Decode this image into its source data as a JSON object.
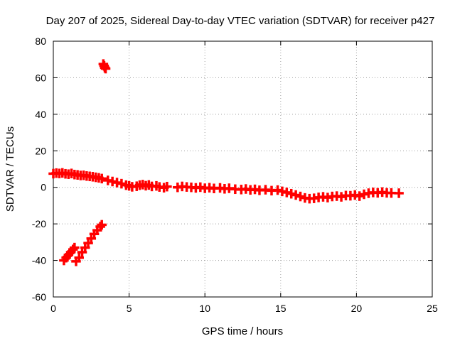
{
  "chart_data": {
    "type": "scatter",
    "title": "Day 207 of 2025, Sidereal Day-to-day VTEC variation (SDTVAR) for receiver p427",
    "xlabel": "GPS time / hours",
    "ylabel": "SDTVAR / TECUs",
    "xlim": [
      0,
      25
    ],
    "ylim": [
      -60,
      80
    ],
    "xticks": [
      "0",
      "5",
      "10",
      "15",
      "20",
      "25"
    ],
    "yticks": [
      "-60",
      "-40",
      "-20",
      "0",
      "20",
      "40",
      "60",
      "80"
    ],
    "grid": true,
    "marker": "plus",
    "series": [
      {
        "name": "main-trend",
        "color": "#ff0000",
        "points": [
          [
            0.0,
            7.5
          ],
          [
            0.2,
            7.8
          ],
          [
            0.4,
            7.6
          ],
          [
            0.6,
            7.9
          ],
          [
            0.8,
            7.4
          ],
          [
            1.0,
            7.2
          ],
          [
            1.2,
            7.6
          ],
          [
            1.4,
            7.0
          ],
          [
            1.6,
            6.8
          ],
          [
            1.8,
            6.5
          ],
          [
            2.0,
            6.6
          ],
          [
            2.2,
            6.2
          ],
          [
            2.4,
            6.0
          ],
          [
            2.6,
            5.8
          ],
          [
            2.8,
            5.5
          ],
          [
            3.0,
            5.2
          ],
          [
            3.2,
            4.8
          ],
          [
            3.6,
            3.8
          ],
          [
            3.9,
            3.2
          ],
          [
            4.2,
            2.6
          ],
          [
            4.5,
            2.0
          ],
          [
            4.8,
            1.2
          ],
          [
            5.0,
            0.8
          ],
          [
            5.2,
            0.3
          ],
          [
            5.5,
            0.6
          ],
          [
            5.7,
            1.2
          ],
          [
            5.9,
            1.5
          ],
          [
            6.1,
            0.9
          ],
          [
            6.3,
            1.3
          ],
          [
            6.5,
            0.5
          ],
          [
            6.8,
            0.8
          ],
          [
            7.0,
            0.2
          ],
          [
            7.3,
            -0.2
          ],
          [
            7.5,
            0.4
          ],
          [
            8.2,
            0.0
          ],
          [
            8.5,
            0.5
          ],
          [
            8.8,
            0.2
          ],
          [
            9.1,
            0.0
          ],
          [
            9.4,
            -0.3
          ],
          [
            9.7,
            0.1
          ],
          [
            10.0,
            -0.5
          ],
          [
            10.3,
            -0.2
          ],
          [
            10.6,
            -0.6
          ],
          [
            11.0,
            -0.3
          ],
          [
            11.3,
            -0.8
          ],
          [
            11.6,
            -0.5
          ],
          [
            12.0,
            -1.0
          ],
          [
            12.4,
            -1.2
          ],
          [
            12.7,
            -0.9
          ],
          [
            13.0,
            -1.4
          ],
          [
            13.3,
            -1.1
          ],
          [
            13.6,
            -1.6
          ],
          [
            14.0,
            -1.3
          ],
          [
            14.4,
            -1.8
          ],
          [
            14.8,
            -1.5
          ],
          [
            15.1,
            -2.2
          ],
          [
            15.4,
            -2.8
          ],
          [
            15.7,
            -3.5
          ],
          [
            16.0,
            -4.2
          ],
          [
            16.3,
            -5.0
          ],
          [
            16.6,
            -5.8
          ],
          [
            16.9,
            -6.2
          ],
          [
            17.2,
            -6.0
          ],
          [
            17.5,
            -5.5
          ],
          [
            17.8,
            -5.2
          ],
          [
            18.1,
            -5.6
          ],
          [
            18.4,
            -5.0
          ],
          [
            18.7,
            -4.8
          ],
          [
            19.0,
            -5.2
          ],
          [
            19.3,
            -4.5
          ],
          [
            19.6,
            -4.6
          ],
          [
            19.9,
            -4.2
          ],
          [
            20.2,
            -4.8
          ],
          [
            20.5,
            -3.8
          ],
          [
            20.8,
            -3.2
          ],
          [
            21.1,
            -2.8
          ],
          [
            21.4,
            -3.0
          ],
          [
            21.7,
            -2.6
          ],
          [
            22.0,
            -3.0
          ],
          [
            22.3,
            -3.1
          ],
          [
            22.8,
            -3.2
          ]
        ]
      },
      {
        "name": "outlier-upper",
        "color": "#ff0000",
        "points": [
          [
            3.3,
            67.5
          ],
          [
            3.35,
            66.5
          ],
          [
            3.4,
            65.5
          ],
          [
            3.45,
            65.0
          ]
        ]
      },
      {
        "name": "outlier-lower-left",
        "color": "#ff0000",
        "points": [
          [
            0.7,
            -40.0
          ],
          [
            0.85,
            -38.5
          ],
          [
            1.0,
            -37.0
          ],
          [
            1.15,
            -35.5
          ],
          [
            1.3,
            -34.0
          ],
          [
            1.4,
            -33.0
          ]
        ]
      },
      {
        "name": "outlier-lower-right",
        "color": "#ff0000",
        "points": [
          [
            1.5,
            -40.5
          ],
          [
            1.7,
            -38.5
          ],
          [
            1.9,
            -35.5
          ],
          [
            2.1,
            -33.0
          ],
          [
            2.3,
            -30.5
          ],
          [
            2.5,
            -28.0
          ],
          [
            2.7,
            -25.5
          ],
          [
            2.9,
            -23.5
          ],
          [
            3.1,
            -21.5
          ],
          [
            3.2,
            -20.5
          ]
        ]
      }
    ]
  }
}
